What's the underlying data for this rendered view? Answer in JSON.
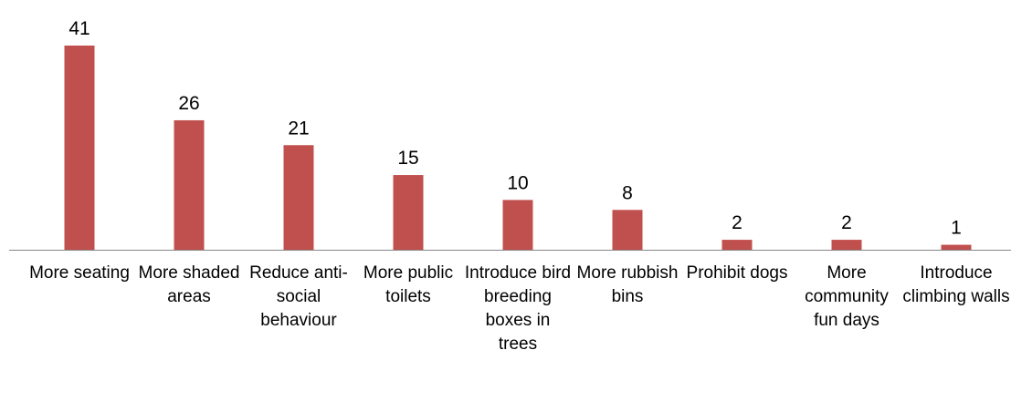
{
  "chart_data": {
    "type": "bar",
    "categories": [
      "More seating",
      "More shaded areas",
      "Reduce anti-social behaviour",
      "More public toilets",
      "Introduce bird breeding boxes in trees",
      "More rubbish bins",
      "Prohibit dogs",
      "More community fun days",
      "Introduce climbing walls"
    ],
    "values": [
      41,
      26,
      21,
      15,
      10,
      8,
      2,
      2,
      1
    ],
    "color": "#c0504d"
  }
}
